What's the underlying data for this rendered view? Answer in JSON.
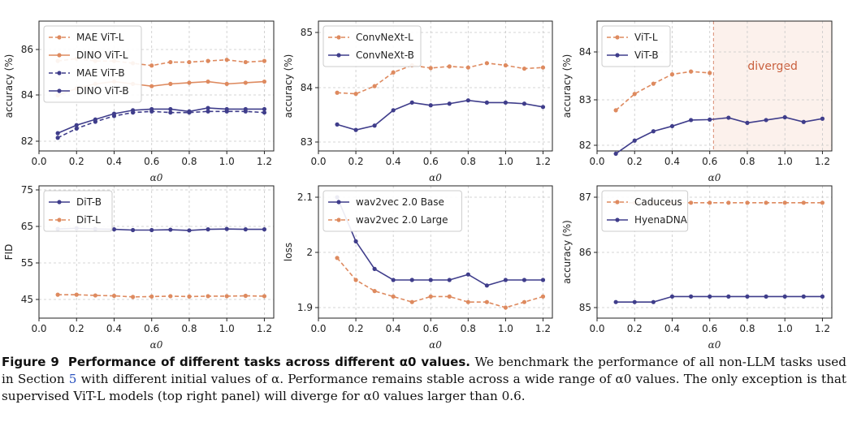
{
  "colors": {
    "orange": "#de8a5f",
    "purple": "#3f3d8b",
    "grid": "#c8c8c8",
    "diverged_bg": "#fcf1ec",
    "diverged_line": "#d98b72",
    "diverged_text": "#c9603e"
  },
  "caption": {
    "label": "Figure 9",
    "title": "Performance of different tasks across different α0 values.",
    "text1": "We benchmark the performance of all non-LLM tasks used in Section",
    "ref": "5",
    "text2": "with different initial values of α. Performance remains stable across a wide range of α0 values. The only exception is that supervised ViT-L models (top right panel) will diverge for α0 values larger than 0.6."
  },
  "chart_data": [
    {
      "type": "line",
      "xlabel": "α0",
      "ylabel": "accuracy (%)",
      "xlim": [
        0.0,
        1.25
      ],
      "ylim": [
        81.5,
        87.2
      ],
      "xticks": [
        0.0,
        0.2,
        0.4,
        0.6,
        0.8,
        1.0,
        1.2
      ],
      "yticks": [
        82,
        84,
        86
      ],
      "grid": true,
      "legend": "top-left",
      "series": [
        {
          "name": "MAE ViT-L",
          "color": "orange",
          "dashed": true,
          "x": [
            0.1,
            0.2,
            0.3,
            0.4,
            0.5,
            0.6,
            0.7,
            0.8,
            0.9,
            1.0,
            1.1,
            1.2
          ],
          "y": [
            85.5,
            85.6,
            85.5,
            85.5,
            85.4,
            85.3,
            85.45,
            85.45,
            85.5,
            85.55,
            85.45,
            85.5
          ]
        },
        {
          "name": "DINO ViT-L",
          "color": "orange",
          "dashed": false,
          "x": [
            0.1,
            0.2,
            0.3,
            0.4,
            0.5,
            0.6,
            0.7,
            0.8,
            0.9,
            1.0,
            1.1,
            1.2
          ],
          "y": [
            84.0,
            84.3,
            84.5,
            84.6,
            84.5,
            84.4,
            84.5,
            84.55,
            84.6,
            84.5,
            84.55,
            84.6
          ]
        },
        {
          "name": "MAE ViT-B",
          "color": "purple",
          "dashed": true,
          "x": [
            0.1,
            0.2,
            0.3,
            0.4,
            0.5,
            0.6,
            0.7,
            0.8,
            0.9,
            1.0,
            1.1,
            1.2
          ],
          "y": [
            82.15,
            82.55,
            82.85,
            83.1,
            83.25,
            83.3,
            83.25,
            83.25,
            83.3,
            83.3,
            83.3,
            83.25
          ]
        },
        {
          "name": "DINO ViT-B",
          "color": "purple",
          "dashed": false,
          "x": [
            0.1,
            0.2,
            0.3,
            0.4,
            0.5,
            0.6,
            0.7,
            0.8,
            0.9,
            1.0,
            1.1,
            1.2
          ],
          "y": [
            82.35,
            82.7,
            82.95,
            83.2,
            83.35,
            83.4,
            83.4,
            83.3,
            83.45,
            83.4,
            83.4,
            83.4
          ]
        }
      ]
    },
    {
      "type": "line",
      "xlabel": "α0",
      "ylabel": "accuracy (%)",
      "xlim": [
        0.0,
        1.25
      ],
      "ylim": [
        82.8,
        85.1
      ],
      "xticks": [
        0.0,
        0.2,
        0.4,
        0.6,
        0.8,
        1.0,
        1.2
      ],
      "yticks": [
        83,
        84,
        85
      ],
      "grid": true,
      "legend": "top-left",
      "series": [
        {
          "name": "ConvNeXt-L",
          "color": "orange",
          "dashed": true,
          "x": [
            0.1,
            0.2,
            0.3,
            0.4,
            0.5,
            0.6,
            0.7,
            0.8,
            0.9,
            1.0,
            1.1,
            1.2
          ],
          "y": [
            83.9,
            83.88,
            84.02,
            84.27,
            84.4,
            84.35,
            84.38,
            84.36,
            84.44,
            84.4,
            84.34,
            84.36
          ]
        },
        {
          "name": "ConvNeXt-B",
          "color": "purple",
          "dashed": false,
          "x": [
            0.1,
            0.2,
            0.3,
            0.4,
            0.5,
            0.6,
            0.7,
            0.8,
            0.9,
            1.0,
            1.1,
            1.2
          ],
          "y": [
            83.32,
            83.22,
            83.3,
            83.58,
            83.72,
            83.67,
            83.7,
            83.76,
            83.72,
            83.72,
            83.7,
            83.64
          ]
        }
      ]
    },
    {
      "type": "line",
      "xlabel": "α0",
      "ylabel": "accuracy (%)",
      "xlim": [
        0.0,
        1.25
      ],
      "ylim": [
        81.8,
        84.85
      ],
      "xticks": [
        0.0,
        0.2,
        0.4,
        0.6,
        0.8,
        1.0,
        1.2
      ],
      "yticks": [
        82,
        83,
        84
      ],
      "grid": true,
      "legend": "top-left",
      "annotation": {
        "text": "diverged",
        "x_from": 0.62
      },
      "series": [
        {
          "name": "ViT-L",
          "color": "orange",
          "dashed": true,
          "x": [
            0.1,
            0.2,
            0.3,
            0.4,
            0.5,
            0.6
          ],
          "y": [
            82.75,
            83.1,
            83.32,
            83.52,
            83.58,
            83.55
          ]
        },
        {
          "name": "ViT-B",
          "color": "purple",
          "dashed": false,
          "x": [
            0.1,
            0.2,
            0.3,
            0.4,
            0.5,
            0.6,
            0.7,
            0.8,
            0.9,
            1.0,
            1.1,
            1.2
          ],
          "y": [
            81.82,
            82.1,
            82.3,
            82.41,
            82.54,
            82.55,
            82.59,
            82.48,
            82.54,
            82.6,
            82.5,
            82.57
          ]
        }
      ]
    },
    {
      "type": "line",
      "xlabel": "α0",
      "ylabel": "FID",
      "xlim": [
        0.0,
        1.25
      ],
      "ylim": [
        41.5,
        76.5
      ],
      "xticks": [
        0.0,
        0.2,
        0.4,
        0.6,
        0.8,
        1.0,
        1.2
      ],
      "yticks": [
        45,
        55,
        65,
        75
      ],
      "grid": true,
      "legend": "top-left",
      "series": [
        {
          "name": "DiT-B",
          "color": "purple",
          "dashed": false,
          "x": [
            0.1,
            0.2,
            0.3,
            0.4,
            0.5,
            0.6,
            0.7,
            0.8,
            0.9,
            1.0,
            1.1,
            1.2
          ],
          "y": [
            64.3,
            64.5,
            64.3,
            64.2,
            64.0,
            64.0,
            64.1,
            63.9,
            64.2,
            64.3,
            64.2,
            64.2
          ]
        },
        {
          "name": "DiT-L",
          "color": "orange",
          "dashed": true,
          "x": [
            0.1,
            0.2,
            0.3,
            0.4,
            0.5,
            0.6,
            0.7,
            0.8,
            0.9,
            1.0,
            1.1,
            1.2
          ],
          "y": [
            46.3,
            46.3,
            46.1,
            46.0,
            45.7,
            45.8,
            45.9,
            45.8,
            45.9,
            45.9,
            46.0,
            45.9
          ]
        }
      ]
    },
    {
      "type": "line",
      "xlabel": "α0",
      "ylabel": "loss",
      "xlim": [
        0.0,
        1.25
      ],
      "ylim": [
        1.885,
        2.112
      ],
      "xticks": [
        0.0,
        0.2,
        0.4,
        0.6,
        0.8,
        1.0,
        1.2
      ],
      "yticks": [
        1.9,
        2.0,
        2.1
      ],
      "grid": true,
      "legend": "top-left",
      "series": [
        {
          "name": "wav2vec 2.0 Base",
          "color": "purple",
          "dashed": false,
          "x": [
            0.1,
            0.2,
            0.3,
            0.4,
            0.5,
            0.6,
            0.7,
            0.8,
            0.9,
            1.0,
            1.1,
            1.2
          ],
          "y": [
            2.1,
            2.02,
            1.97,
            1.95,
            1.95,
            1.95,
            1.95,
            1.96,
            1.94,
            1.95,
            1.95,
            1.95
          ]
        },
        {
          "name": "wav2vec 2.0 Large",
          "color": "orange",
          "dashed": true,
          "x": [
            0.1,
            0.2,
            0.3,
            0.4,
            0.5,
            0.6,
            0.7,
            0.8,
            0.9,
            1.0,
            1.1,
            1.2
          ],
          "y": [
            1.99,
            1.95,
            1.93,
            1.92,
            1.91,
            1.92,
            1.92,
            1.91,
            1.91,
            1.9,
            1.91,
            1.92
          ]
        }
      ]
    },
    {
      "type": "line",
      "xlabel": "α0",
      "ylabel": "accuracy (%)",
      "xlim": [
        0.0,
        1.25
      ],
      "ylim": [
        84.85,
        87.15
      ],
      "xticks": [
        0.0,
        0.2,
        0.4,
        0.6,
        0.8,
        1.0,
        1.2
      ],
      "yticks": [
        85,
        86,
        87
      ],
      "grid": true,
      "legend": "top-left",
      "series": [
        {
          "name": "Caduceus",
          "color": "orange",
          "dashed": true,
          "x": [
            0.1,
            0.2,
            0.3,
            0.4,
            0.5,
            0.6,
            0.7,
            0.8,
            0.9,
            1.0,
            1.1,
            1.2
          ],
          "y": [
            86.9,
            86.9,
            86.9,
            86.9,
            86.9,
            86.9,
            86.9,
            86.9,
            86.9,
            86.9,
            86.9,
            86.9
          ]
        },
        {
          "name": "HyenaDNA",
          "color": "purple",
          "dashed": false,
          "x": [
            0.1,
            0.2,
            0.3,
            0.4,
            0.5,
            0.6,
            0.7,
            0.8,
            0.9,
            1.0,
            1.1,
            1.2
          ],
          "y": [
            85.1,
            85.1,
            85.1,
            85.2,
            85.2,
            85.2,
            85.2,
            85.2,
            85.2,
            85.2,
            85.2,
            85.2
          ]
        }
      ]
    }
  ]
}
